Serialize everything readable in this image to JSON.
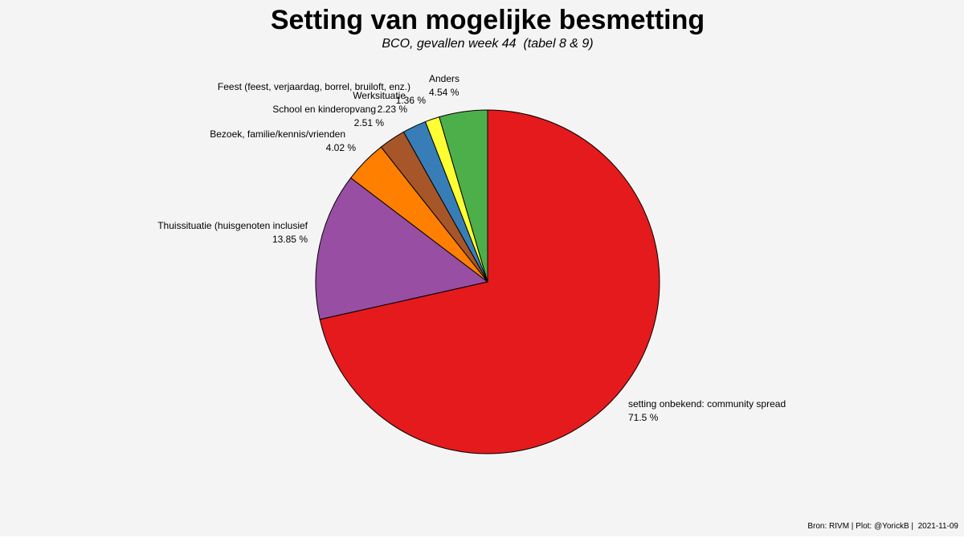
{
  "title": "Setting van mogelijke besmetting",
  "subtitle": "BCO, gevallen week 44  (tabel 8 & 9)",
  "caption": "Bron: RIVM | Plot: @YorickB |  2021-11-09",
  "colors": {
    "background": "#f4f4f4",
    "slice_outline": "#000000"
  },
  "chart_data": {
    "type": "pie",
    "title": "Setting van mogelijke besmetting",
    "subtitle": "BCO, gevallen week 44  (tabel 8 & 9)",
    "start": "12 o'clock",
    "direction": "clockwise",
    "slices": [
      {
        "label": "setting onbekend: community spread",
        "value": 71.5,
        "value_label": "71.5 %",
        "color": "#e41a1c"
      },
      {
        "label": "Thuissituatie (huisgenoten inclusief",
        "value": 13.85,
        "value_label": "13.85 %",
        "color": "#984ea3"
      },
      {
        "label": "Bezoek, familie/kennis/vrienden",
        "value": 4.02,
        "value_label": "4.02 %",
        "color": "#ff7f00"
      },
      {
        "label": "School en kinderopvang",
        "value": 2.51,
        "value_label": "2.51 %",
        "color": "#a65628"
      },
      {
        "label": "Werksituatie",
        "value": 2.23,
        "value_label": "2.23 %",
        "color": "#377eb8"
      },
      {
        "label": "Feest (feest, verjaardag, borrel, bruiloft, enz.)",
        "value": 1.36,
        "value_label": "1.36 %",
        "color": "#ffff33"
      },
      {
        "label": "Anders",
        "value": 4.54,
        "value_label": "4.54 %",
        "color": "#4daf4a"
      }
    ]
  }
}
